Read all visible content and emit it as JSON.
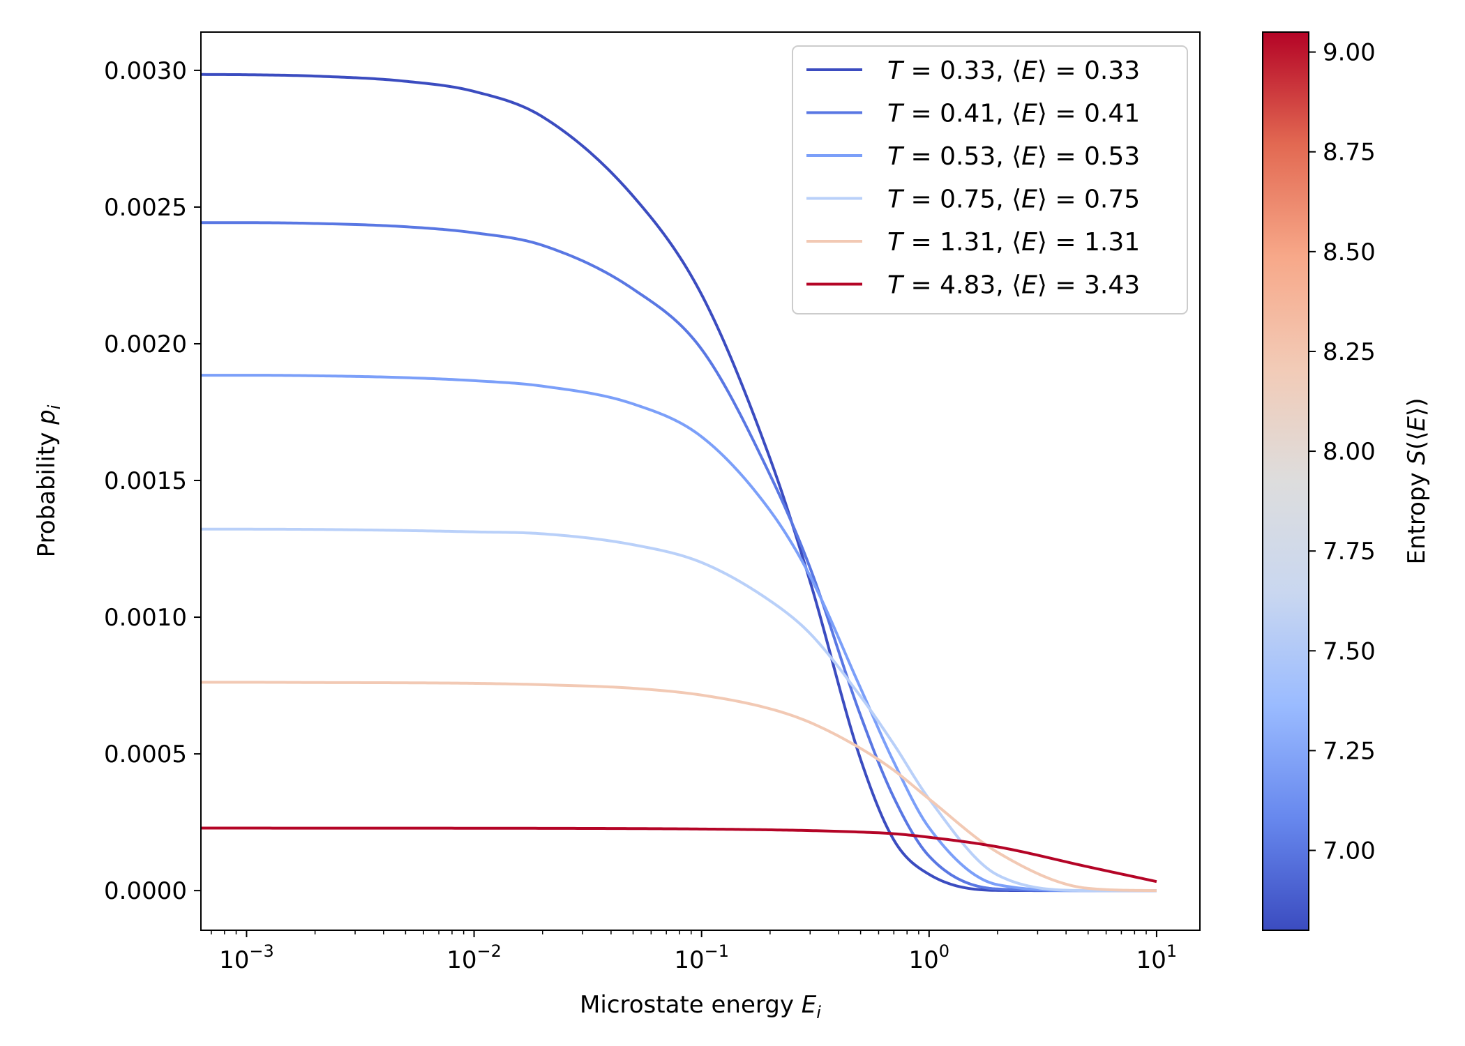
{
  "chart_data": {
    "type": "line",
    "xscale": "log",
    "xlabel_text": "Microstate energy",
    "xlabel_symbol": "E",
    "xlabel_sub": "i",
    "ylabel_text": "Probability",
    "ylabel_symbol": "p",
    "ylabel_sub": "i",
    "xlim": [
      0.00063,
      15.5
    ],
    "ylim": [
      -0.000145,
      0.00314
    ],
    "x_ticks": [
      {
        "value": 0.001,
        "base": "10",
        "exp": "−3"
      },
      {
        "value": 0.01,
        "base": "10",
        "exp": "−2"
      },
      {
        "value": 0.1,
        "base": "10",
        "exp": "−1"
      },
      {
        "value": 1,
        "base": "10",
        "exp": "0"
      },
      {
        "value": 10,
        "base": "10",
        "exp": "1"
      }
    ],
    "y_ticks": [
      {
        "value": 0.0,
        "label": "0.0000"
      },
      {
        "value": 0.0005,
        "label": "0.0005"
      },
      {
        "value": 0.001,
        "label": "0.0010"
      },
      {
        "value": 0.0015,
        "label": "0.0015"
      },
      {
        "value": 0.002,
        "label": "0.0020"
      },
      {
        "value": 0.0025,
        "label": "0.0025"
      },
      {
        "value": 0.003,
        "label": "0.0030"
      }
    ],
    "x_domain": [
      0.00063,
      10
    ],
    "series": [
      {
        "name": "T=0.33, ⟨E⟩=0.33",
        "T_value": "0.33",
        "E_value": "0.33",
        "color": "#3b4cc0",
        "x": [
          0.00063,
          0.001,
          0.002,
          0.005,
          0.01,
          0.02,
          0.05,
          0.1,
          0.2,
          0.3,
          0.5,
          0.7,
          1,
          2,
          5,
          10
        ],
        "y": [
          0.002985,
          0.002984,
          0.002979,
          0.00296,
          0.002923,
          0.00283,
          0.00254,
          0.00218,
          0.00158,
          0.00113,
          0.00048,
          0.000185,
          5.95e-05,
          8.5e-07,
          0,
          0
        ]
      },
      {
        "name": "T=0.41, ⟨E⟩=0.41",
        "T_value": "0.41",
        "E_value": "0.41",
        "color": "#5977e3",
        "x": [
          0.00063,
          0.001,
          0.002,
          0.005,
          0.01,
          0.02,
          0.05,
          0.1,
          0.2,
          0.3,
          0.5,
          0.7,
          1,
          2,
          5,
          10
        ],
        "y": [
          0.002443,
          0.002443,
          0.00244,
          0.002428,
          0.002406,
          0.00236,
          0.0022,
          0.00198,
          0.00152,
          0.00118,
          0.00064,
          0.00034,
          0.000126,
          5.8e-06,
          0,
          0
        ]
      },
      {
        "name": "T=0.53, ⟨E⟩=0.53",
        "T_value": "0.53",
        "E_value": "0.53",
        "color": "#7b9ff9",
        "x": [
          0.00063,
          0.001,
          0.002,
          0.005,
          0.01,
          0.02,
          0.05,
          0.1,
          0.2,
          0.3,
          0.5,
          0.7,
          1,
          2,
          5,
          10
        ],
        "y": [
          0.001885,
          0.001885,
          0.001883,
          0.001876,
          0.001865,
          0.001845,
          0.00178,
          0.00166,
          0.00139,
          0.00115,
          0.00074,
          0.00047,
          0.00023,
          2.15e-05,
          0,
          0
        ]
      },
      {
        "name": "T=0.75, ⟨E⟩=0.75",
        "T_value": "0.75",
        "E_value": "0.75",
        "color": "#b9d0f9",
        "x": [
          0.00063,
          0.001,
          0.002,
          0.005,
          0.01,
          0.02,
          0.05,
          0.1,
          0.2,
          0.3,
          0.5,
          0.7,
          1,
          2,
          5,
          10
        ],
        "y": [
          0.001322,
          0.001322,
          0.001321,
          0.001317,
          0.001312,
          0.001305,
          0.001265,
          0.0012,
          0.00106,
          0.00094,
          0.00071,
          0.000535,
          0.000335,
          5.7e-05,
          3e-07,
          0
        ]
      },
      {
        "name": "T=1.31, ⟨E⟩=1.31",
        "T_value": "1.31",
        "E_value": "1.31",
        "color": "#f2c9b4",
        "x": [
          0.00063,
          0.001,
          0.002,
          0.005,
          0.01,
          0.02,
          0.05,
          0.1,
          0.2,
          0.3,
          0.5,
          0.7,
          1,
          2,
          5,
          10
        ],
        "y": [
          0.000762,
          0.000762,
          0.000761,
          0.00076,
          0.000758,
          0.000753,
          0.00074,
          0.000715,
          0.000665,
          0.000615,
          0.00052,
          0.00044,
          0.000335,
          0.00014,
          8.2e-06,
          0
        ]
      },
      {
        "name": "T=4.83, ⟨E⟩=3.43",
        "T_value": "4.83",
        "E_value": "3.43",
        "color": "#b40426",
        "x": [
          0.00063,
          0.001,
          0.002,
          0.005,
          0.01,
          0.02,
          0.05,
          0.1,
          0.2,
          0.3,
          0.5,
          0.7,
          1,
          2,
          5,
          10
        ],
        "y": [
          0.0002285,
          0.0002285,
          0.0002284,
          0.0002283,
          0.0002281,
          0.0002278,
          0.0002268,
          0.0002252,
          0.0002222,
          0.0002195,
          0.000214,
          0.000208,
          0.000195,
          0.00016,
          8.7e-05,
          3.3e-05
        ]
      }
    ],
    "legend_position": "upper right",
    "colorbar": {
      "label_text": "Entropy",
      "label_symbol": "S",
      "label_inner": "E",
      "range": [
        6.8,
        9.05
      ],
      "ticks": [
        {
          "value": 7.0,
          "label": "7.00"
        },
        {
          "value": 7.25,
          "label": "7.25"
        },
        {
          "value": 7.5,
          "label": "7.50"
        },
        {
          "value": 7.75,
          "label": "7.75"
        },
        {
          "value": 8.0,
          "label": "8.00"
        },
        {
          "value": 8.25,
          "label": "8.25"
        },
        {
          "value": 8.5,
          "label": "8.50"
        },
        {
          "value": 8.75,
          "label": "8.75"
        },
        {
          "value": 9.0,
          "label": "9.00"
        }
      ],
      "colormap": [
        "#3b4cc0",
        "#6788ee",
        "#9abbff",
        "#c9d7f0",
        "#dddddd",
        "#f2cbb7",
        "#f7a889",
        "#e26952",
        "#b40426"
      ]
    }
  }
}
